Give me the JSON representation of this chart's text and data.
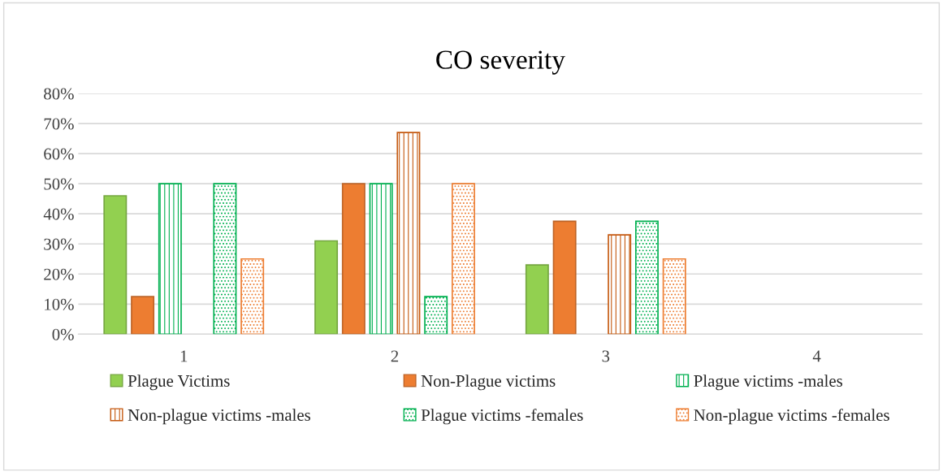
{
  "chart_data": {
    "type": "bar",
    "title": "CO severity",
    "categories": [
      "1",
      "2",
      "3",
      "4"
    ],
    "series": [
      {
        "name": "Plague Victims",
        "color": "#92d050",
        "values": [
          46,
          31,
          23,
          null
        ]
      },
      {
        "name": "Non-Plague victims",
        "color": "#ed7d31",
        "values": [
          12.5,
          50,
          37.5,
          null
        ]
      },
      {
        "name": "Plague victims -males",
        "color": "#00b050",
        "values": [
          50,
          50,
          null,
          null
        ]
      },
      {
        "name": "Non-plague victims -males",
        "color": "#c55a11",
        "values": [
          null,
          67,
          33,
          null
        ]
      },
      {
        "name": "Plague victims -females",
        "color": "#00b050",
        "values": [
          50,
          12.5,
          37.5,
          null
        ]
      },
      {
        "name": "Non-plague victims -females",
        "color": "#ed7d31",
        "values": [
          25,
          50,
          25,
          null
        ]
      }
    ],
    "ylim": [
      0,
      80
    ],
    "yticks": [
      {
        "value": 0,
        "label": "0%"
      },
      {
        "value": 10,
        "label": "10%"
      },
      {
        "value": 20,
        "label": "20%"
      },
      {
        "value": 30,
        "label": "30%"
      },
      {
        "value": 40,
        "label": "40%"
      },
      {
        "value": 50,
        "label": "50%"
      },
      {
        "value": 60,
        "label": "60%"
      },
      {
        "value": 70,
        "label": "70%"
      },
      {
        "value": 80,
        "label": "80%"
      }
    ],
    "grid": "y",
    "legend": "bottom"
  }
}
